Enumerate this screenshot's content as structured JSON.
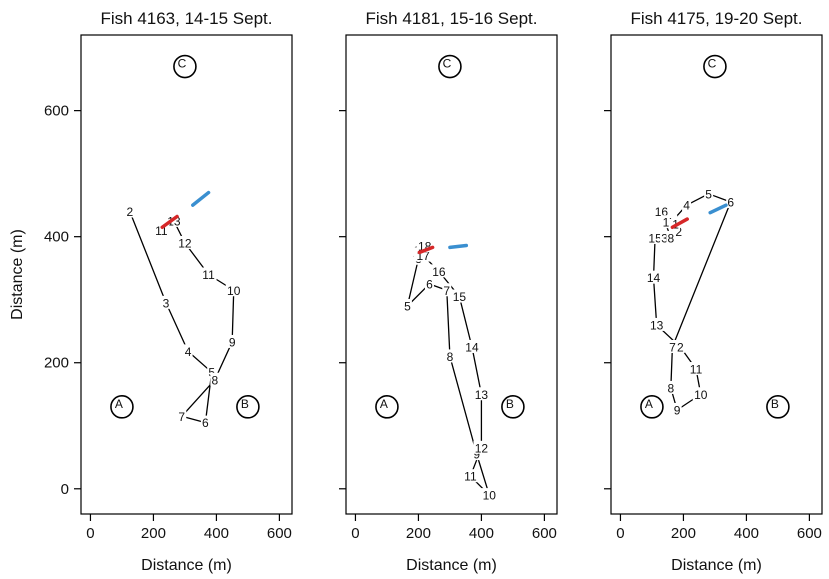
{
  "chart_data": {
    "type": "scatter",
    "x_label": "Distance (m)",
    "y_label": "Distance (m)",
    "xlim": [
      -30,
      640
    ],
    "ylim": [
      -40,
      720
    ],
    "x_ticks": [
      0,
      200,
      400,
      600
    ],
    "y_ticks": [
      0,
      200,
      400,
      600
    ],
    "stations": [
      {
        "label": "A",
        "x": 100,
        "y": 130
      },
      {
        "label": "B",
        "x": 500,
        "y": 130
      },
      {
        "label": "C",
        "x": 300,
        "y": 670
      }
    ],
    "colors": {
      "start_marker": "#d62728",
      "end_marker": "#3a8fd0",
      "track": "#000000"
    },
    "panels": [
      {
        "title": "Fish 4163, 14-15 Sept.",
        "start_marker": [
          [
            228,
            415
          ],
          [
            275,
            432
          ]
        ],
        "end_marker": [
          [
            325,
            450
          ],
          [
            375,
            470
          ]
        ],
        "points": [
          {
            "n": "2",
            "x": 125,
            "y": 440
          },
          {
            "n": "3",
            "x": 240,
            "y": 295
          },
          {
            "n": "4",
            "x": 310,
            "y": 218
          },
          {
            "n": "5",
            "x": 385,
            "y": 185
          },
          {
            "n": "6",
            "x": 365,
            "y": 105
          },
          {
            "n": "7",
            "x": 290,
            "y": 115
          },
          {
            "n": "8",
            "x": 395,
            "y": 173
          },
          {
            "n": "9",
            "x": 450,
            "y": 233
          },
          {
            "n": "10",
            "x": 455,
            "y": 315
          },
          {
            "n": "11",
            "x": 375,
            "y": 340
          },
          {
            "n": "12",
            "x": 300,
            "y": 390
          },
          {
            "n": "13",
            "x": 265,
            "y": 425
          },
          {
            "n": "11",
            "x": 225,
            "y": 410
          }
        ]
      },
      {
        "title": "Fish 4181, 15-16 Sept.",
        "start_marker": [
          [
            203,
            375
          ],
          [
            245,
            383
          ]
        ],
        "end_marker": [
          [
            300,
            383
          ],
          [
            352,
            386
          ]
        ],
        "points": [
          {
            "n": "2",
            "x": 195,
            "y": 378
          },
          {
            "n": "4",
            "x": 195,
            "y": 372
          },
          {
            "n": "3",
            "x": 200,
            "y": 365
          },
          {
            "n": "5",
            "x": 165,
            "y": 290
          },
          {
            "n": "6",
            "x": 235,
            "y": 325
          },
          {
            "n": "7",
            "x": 290,
            "y": 315
          },
          {
            "n": "8",
            "x": 300,
            "y": 210
          },
          {
            "n": "9",
            "x": 385,
            "y": 55
          },
          {
            "n": "10",
            "x": 425,
            "y": -10
          },
          {
            "n": "11",
            "x": 365,
            "y": 20
          },
          {
            "n": "12",
            "x": 400,
            "y": 65
          },
          {
            "n": "13",
            "x": 400,
            "y": 150
          },
          {
            "n": "14",
            "x": 370,
            "y": 225
          },
          {
            "n": "15",
            "x": 330,
            "y": 305
          },
          {
            "n": "16",
            "x": 265,
            "y": 345
          },
          {
            "n": "17",
            "x": 215,
            "y": 370
          },
          {
            "n": "18",
            "x": 220,
            "y": 385
          }
        ]
      },
      {
        "title": "Fish 4175, 19-20 Sept.",
        "start_marker": [
          [
            165,
            415
          ],
          [
            212,
            428
          ]
        ],
        "end_marker": [
          [
            285,
            438
          ],
          [
            335,
            450
          ]
        ],
        "points": [
          {
            "n": "2",
            "x": 185,
            "y": 408
          },
          {
            "n": "3",
            "x": 165,
            "y": 425
          },
          {
            "n": "4",
            "x": 210,
            "y": 450
          },
          {
            "n": "5",
            "x": 280,
            "y": 468
          },
          {
            "n": "6",
            "x": 350,
            "y": 455
          },
          {
            "n": "7",
            "x": 165,
            "y": 225
          },
          {
            "n": "8",
            "x": 160,
            "y": 160
          },
          {
            "n": "9",
            "x": 180,
            "y": 125
          },
          {
            "n": "10",
            "x": 255,
            "y": 150
          },
          {
            "n": "11",
            "x": 240,
            "y": 190
          },
          {
            "n": "2",
            "x": 190,
            "y": 225
          },
          {
            "n": "13",
            "x": 115,
            "y": 260
          },
          {
            "n": "14",
            "x": 105,
            "y": 335
          },
          {
            "n": "15",
            "x": 110,
            "y": 398
          },
          {
            "n": "3",
            "x": 140,
            "y": 398
          },
          {
            "n": "8",
            "x": 160,
            "y": 398
          },
          {
            "n": "16",
            "x": 130,
            "y": 440
          },
          {
            "n": "17",
            "x": 155,
            "y": 423
          },
          {
            "n": "1",
            "x": 175,
            "y": 420
          }
        ]
      }
    ]
  }
}
